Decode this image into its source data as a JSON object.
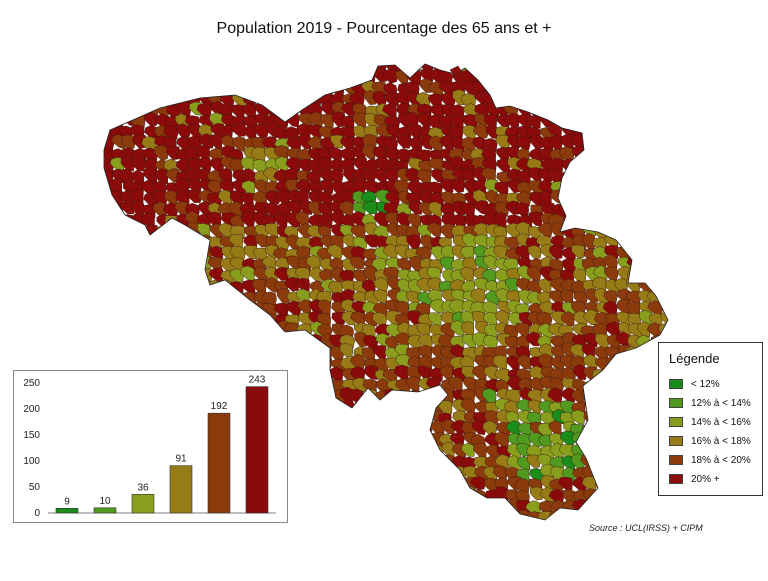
{
  "title": "Population 2019 - Pourcentage des 65 ans et +",
  "legend": {
    "title": "Légende",
    "items": [
      {
        "label": "< 12%",
        "color": "#1a8c1a"
      },
      {
        "label": "12% à < 14%",
        "color": "#4f9a1f"
      },
      {
        "label": "14% à < 16%",
        "color": "#8a9e1e"
      },
      {
        "label": "16% à < 18%",
        "color": "#967b16"
      },
      {
        "label": "18% à < 20%",
        "color": "#8b3a0c"
      },
      {
        "label": "20% +",
        "color": "#8b0a0a"
      }
    ]
  },
  "source": "Source : UCL(IRSS) + CIPM",
  "chart_data": {
    "type": "bar",
    "categories": [
      "< 12%",
      "12% à < 14%",
      "14% à < 16%",
      "16% à < 18%",
      "18% à < 20%",
      "20% +"
    ],
    "values": [
      9,
      10,
      36,
      91,
      192,
      243
    ],
    "colors": [
      "#1a8c1a",
      "#4f9a1f",
      "#8a9e1e",
      "#967b16",
      "#8b3a0c",
      "#8b0a0a"
    ],
    "yticks": [
      0,
      50,
      100,
      150,
      200,
      250
    ],
    "ylim": [
      0,
      250
    ],
    "title": "",
    "xlabel": "",
    "ylabel": ""
  }
}
